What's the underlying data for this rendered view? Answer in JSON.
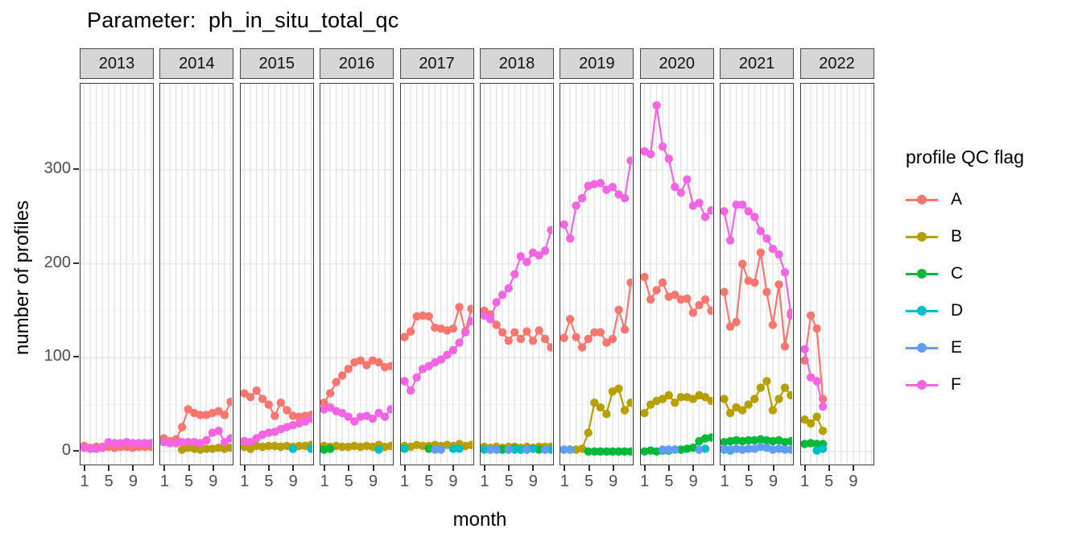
{
  "title": "Parameter:  ph_in_situ_total_qc",
  "axes": {
    "ylabel": "number of profiles",
    "xlabel": "month",
    "ytick_labels": [
      "0",
      "100",
      "200",
      "300"
    ],
    "xtick_labels": [
      "1",
      "5",
      "9"
    ]
  },
  "legend": {
    "title": "profile QC flag",
    "entries": [
      {
        "label": "A",
        "color": "#F8766D"
      },
      {
        "label": "B",
        "color": "#B79F00"
      },
      {
        "label": "C",
        "color": "#00BA38"
      },
      {
        "label": "D",
        "color": "#00BFC4"
      },
      {
        "label": "E",
        "color": "#619CFF"
      },
      {
        "label": "F",
        "color": "#F564E3"
      }
    ]
  },
  "chart_data": {
    "type": "line",
    "title": "Parameter:  ph_in_situ_total_qc",
    "xlabel": "month",
    "ylabel": "number of profiles",
    "legend_title": "profile QC flag",
    "legend_position": "right",
    "grid": true,
    "facet_variable": "year",
    "x": [
      1,
      2,
      3,
      4,
      5,
      6,
      7,
      8,
      9,
      10,
      11,
      12
    ],
    "xticks": [
      1,
      5,
      9
    ],
    "yticks": [
      0,
      100,
      200,
      300
    ],
    "ylim": [
      -13,
      392
    ],
    "series_order": [
      "A",
      "B",
      "C",
      "D",
      "E",
      "F"
    ],
    "colors": {
      "A": "#F8766D",
      "B": "#B79F00",
      "C": "#00BA38",
      "D": "#00BFC4",
      "E": "#619CFF",
      "F": "#F564E3"
    },
    "facets": [
      {
        "year": "2013",
        "series": {
          "A": [
            6,
            4,
            5,
            5,
            5,
            4,
            5,
            5,
            4,
            5,
            5,
            5
          ],
          "F": [
            4,
            3,
            3,
            4,
            10,
            9,
            9,
            10,
            9,
            9,
            9,
            9
          ]
        }
      },
      {
        "year": "2014",
        "series": {
          "A": [
            14,
            11,
            13,
            26,
            45,
            41,
            39,
            39,
            41,
            43,
            39,
            53
          ],
          "B": [
            null,
            null,
            null,
            2,
            4,
            3,
            2,
            3,
            3,
            4,
            3,
            4
          ],
          "F": [
            10,
            9,
            9,
            10,
            10,
            10,
            9,
            12,
            20,
            22,
            10,
            14
          ]
        }
      },
      {
        "year": "2015",
        "series": {
          "A": [
            62,
            58,
            65,
            56,
            50,
            38,
            52,
            44,
            38,
            37,
            38,
            39
          ],
          "B": [
            5,
            3,
            6,
            5,
            6,
            6,
            5,
            6,
            5,
            6,
            6,
            7
          ],
          "D": [
            null,
            null,
            null,
            null,
            null,
            null,
            null,
            null,
            3,
            null,
            null,
            3
          ],
          "F": [
            11,
            10,
            14,
            18,
            20,
            21,
            24,
            26,
            28,
            30,
            32,
            35
          ]
        }
      },
      {
        "year": "2016",
        "series": {
          "A": [
            52,
            62,
            74,
            81,
            88,
            95,
            97,
            92,
            97,
            95,
            90,
            91
          ],
          "B": [
            6,
            5,
            6,
            5,
            5,
            6,
            5,
            6,
            5,
            7,
            5,
            6
          ],
          "C": [
            2,
            3,
            null,
            null,
            null,
            null,
            null,
            null,
            null,
            null,
            null,
            null
          ],
          "D": [
            null,
            null,
            null,
            null,
            null,
            null,
            null,
            null,
            null,
            2,
            null,
            null
          ],
          "F": [
            45,
            47,
            43,
            41,
            37,
            32,
            37,
            38,
            35,
            41,
            37,
            45
          ]
        }
      },
      {
        "year": "2017",
        "series": {
          "A": [
            122,
            128,
            144,
            145,
            144,
            132,
            131,
            129,
            131,
            154,
            128,
            152
          ],
          "B": [
            6,
            5,
            7,
            6,
            6,
            7,
            6,
            7,
            6,
            8,
            6,
            7
          ],
          "C": [
            null,
            null,
            null,
            null,
            3,
            null,
            null,
            null,
            null,
            null,
            null,
            null
          ],
          "D": [
            3,
            null,
            null,
            null,
            null,
            null,
            null,
            null,
            3,
            3,
            null,
            null
          ],
          "E": [
            null,
            null,
            null,
            null,
            null,
            2,
            2,
            null,
            null,
            null,
            null,
            null
          ],
          "F": [
            75,
            65,
            79,
            88,
            91,
            95,
            98,
            103,
            108,
            116,
            127,
            139
          ]
        }
      },
      {
        "year": "2018",
        "series": {
          "A": [
            150,
            146,
            135,
            127,
            118,
            127,
            120,
            128,
            118,
            129,
            120,
            111
          ],
          "B": [
            5,
            4,
            5,
            4,
            5,
            5,
            4,
            5,
            4,
            5,
            5,
            5
          ],
          "C": [
            null,
            2,
            null,
            2,
            2,
            3,
            2,
            2,
            null,
            2,
            null,
            null
          ],
          "D": [
            2,
            null,
            2,
            null,
            null,
            2,
            2,
            null,
            3,
            null,
            null,
            2
          ],
          "E": [
            null,
            2,
            2,
            null,
            2,
            null,
            null,
            2,
            null,
            null,
            2,
            null
          ],
          "F": [
            145,
            141,
            159,
            167,
            174,
            189,
            208,
            202,
            212,
            209,
            214,
            236
          ]
        }
      },
      {
        "year": "2019",
        "series": {
          "A": [
            121,
            141,
            122,
            111,
            120,
            127,
            127,
            116,
            120,
            151,
            130,
            180
          ],
          "B": [
            2,
            2,
            2,
            3,
            20,
            52,
            47,
            40,
            64,
            67,
            44,
            52
          ],
          "C": [
            null,
            null,
            null,
            null,
            0,
            0,
            0,
            0,
            0,
            0,
            0,
            0
          ],
          "E": [
            2,
            2,
            null,
            null,
            null,
            null,
            null,
            null,
            null,
            null,
            null,
            null
          ],
          "F": [
            242,
            227,
            262,
            270,
            283,
            285,
            286,
            279,
            282,
            274,
            270,
            310
          ]
        }
      },
      {
        "year": "2020",
        "series": {
          "A": [
            186,
            162,
            172,
            180,
            165,
            167,
            162,
            163,
            148,
            156,
            162,
            150
          ],
          "B": [
            41,
            50,
            54,
            56,
            60,
            52,
            58,
            58,
            56,
            60,
            58,
            54
          ],
          "C": [
            0,
            1,
            0,
            1,
            1,
            2,
            2,
            3,
            4,
            11,
            14,
            15
          ],
          "D": [
            null,
            null,
            null,
            null,
            null,
            null,
            null,
            null,
            null,
            null,
            3,
            null
          ],
          "E": [
            null,
            null,
            null,
            2,
            2,
            2,
            null,
            null,
            null,
            2,
            null,
            null
          ],
          "F": [
            320,
            317,
            369,
            325,
            312,
            282,
            276,
            290,
            262,
            265,
            250,
            257
          ]
        }
      },
      {
        "year": "2021",
        "series": {
          "A": [
            170,
            133,
            138,
            200,
            182,
            180,
            212,
            170,
            135,
            178,
            112,
            148
          ],
          "B": [
            56,
            41,
            47,
            44,
            50,
            56,
            68,
            75,
            44,
            56,
            68,
            60
          ],
          "C": [
            10,
            11,
            12,
            11,
            12,
            12,
            13,
            12,
            11,
            12,
            10,
            11
          ],
          "D": [
            2,
            1,
            null,
            null,
            null,
            null,
            null,
            null,
            null,
            null,
            null,
            null
          ],
          "E": [
            3,
            2,
            3,
            2,
            3,
            3,
            5,
            4,
            2,
            3,
            2,
            2
          ],
          "F": [
            256,
            225,
            263,
            263,
            256,
            250,
            235,
            227,
            216,
            210,
            191,
            145
          ]
        }
      },
      {
        "year": "2022",
        "series": {
          "A": [
            97,
            145,
            131,
            56,
            null,
            null,
            null,
            null,
            null,
            null,
            null,
            null
          ],
          "B": [
            34,
            30,
            37,
            22,
            null,
            null,
            null,
            null,
            null,
            null,
            null,
            null
          ],
          "C": [
            8,
            9,
            8,
            8,
            null,
            null,
            null,
            null,
            null,
            null,
            null,
            null
          ],
          "D": [
            null,
            null,
            1,
            3,
            null,
            null,
            null,
            null,
            null,
            null,
            null,
            null
          ],
          "F": [
            109,
            79,
            75,
            48,
            null,
            null,
            null,
            null,
            null,
            null,
            null,
            null
          ]
        }
      }
    ]
  }
}
